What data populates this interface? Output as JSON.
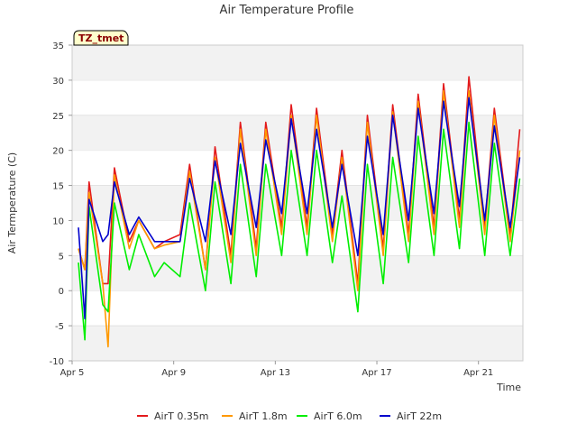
{
  "chart_data": {
    "type": "line",
    "title": "Air Temperature Profile",
    "xlabel": "Time",
    "ylabel": "Air Termperature (C)",
    "site_label": "TZ_tmet",
    "ylim": [
      -10,
      35
    ],
    "y_ticks": [
      -10,
      -5,
      0,
      5,
      10,
      15,
      20,
      25,
      30,
      35
    ],
    "xlim": [
      "2000-04-05",
      "2000-04-22 18:00"
    ],
    "x_ticks": [
      {
        "label": "Apr 5",
        "date": "2000-04-05"
      },
      {
        "label": "Apr 9",
        "date": "2000-04-09"
      },
      {
        "label": "Apr 13",
        "date": "2000-04-13"
      },
      {
        "label": "Apr 17",
        "date": "2000-04-17"
      },
      {
        "label": "Apr 21",
        "date": "2000-04-21"
      }
    ],
    "grid": "horizontal bands",
    "legend_position": "bottom",
    "series": [
      {
        "name": "AirT 0.35m",
        "color": "#e31a1c",
        "x": [
          "2000-04-05 06:00",
          "2000-04-05 12:00",
          "2000-04-05 16:00",
          "2000-04-06 05:00",
          "2000-04-06 10:00",
          "2000-04-06 16:00",
          "2000-04-07 06:00",
          "2000-04-07 15:00",
          "2000-04-08 06:00",
          "2000-04-08 15:00",
          "2000-04-09 06:00",
          "2000-04-09 15:00",
          "2000-04-10 06:00",
          "2000-04-10 15:00",
          "2000-04-11 06:00",
          "2000-04-11 15:00",
          "2000-04-12 06:00",
          "2000-04-12 15:00",
          "2000-04-13 06:00",
          "2000-04-13 15:00",
          "2000-04-14 06:00",
          "2000-04-14 15:00",
          "2000-04-15 06:00",
          "2000-04-15 15:00",
          "2000-04-16 06:00",
          "2000-04-16 15:00",
          "2000-04-17 06:00",
          "2000-04-17 15:00",
          "2000-04-18 06:00",
          "2000-04-18 15:00",
          "2000-04-19 06:00",
          "2000-04-19 15:00",
          "2000-04-20 06:00",
          "2000-04-20 15:00",
          "2000-04-21 06:00",
          "2000-04-21 15:00",
          "2000-04-22 06:00",
          "2000-04-22 15:00"
        ],
        "y": [
          6,
          3,
          15.5,
          1,
          1,
          17.5,
          7,
          10,
          6,
          7,
          8,
          18,
          3,
          20.5,
          5,
          24,
          6,
          24,
          9,
          26.5,
          9,
          26,
          8,
          20,
          1,
          25,
          6,
          26.5,
          8,
          28,
          9,
          29.5,
          10,
          30.5,
          9,
          26,
          8,
          23
        ]
      },
      {
        "name": "AirT 1.8m",
        "color": "#ff9900",
        "x": [
          "2000-04-05 06:00",
          "2000-04-05 12:00",
          "2000-04-05 16:00",
          "2000-04-06 05:00",
          "2000-04-06 10:00",
          "2000-04-06 16:00",
          "2000-04-07 06:00",
          "2000-04-07 15:00",
          "2000-04-08 06:00",
          "2000-04-08 15:00",
          "2000-04-09 06:00",
          "2000-04-09 15:00",
          "2000-04-10 06:00",
          "2000-04-10 15:00",
          "2000-04-11 06:00",
          "2000-04-11 15:00",
          "2000-04-12 06:00",
          "2000-04-12 15:00",
          "2000-04-13 06:00",
          "2000-04-13 15:00",
          "2000-04-14 06:00",
          "2000-04-14 15:00",
          "2000-04-15 06:00",
          "2000-04-15 15:00",
          "2000-04-16 06:00",
          "2000-04-16 15:00",
          "2000-04-17 06:00",
          "2000-04-17 15:00",
          "2000-04-18 06:00",
          "2000-04-18 15:00",
          "2000-04-19 06:00",
          "2000-04-19 15:00",
          "2000-04-20 06:00",
          "2000-04-20 15:00",
          "2000-04-21 06:00",
          "2000-04-21 15:00",
          "2000-04-22 06:00",
          "2000-04-22 15:00"
        ],
        "y": [
          6,
          3,
          14,
          1,
          -8,
          16.5,
          6,
          10,
          6,
          6.5,
          7,
          17,
          3,
          19,
          4,
          23,
          5,
          23,
          8,
          25,
          8,
          25,
          7,
          19,
          0,
          24,
          5,
          25.5,
          7,
          27,
          8,
          28.5,
          9,
          28.5,
          8,
          25,
          7,
          20
        ]
      },
      {
        "name": "AirT 6.0m",
        "color": "#00ee00",
        "x": [
          "2000-04-05 06:00",
          "2000-04-05 12:00",
          "2000-04-05 16:00",
          "2000-04-06 05:00",
          "2000-04-06 10:00",
          "2000-04-06 16:00",
          "2000-04-07 06:00",
          "2000-04-07 15:00",
          "2000-04-08 06:00",
          "2000-04-08 15:00",
          "2000-04-09 06:00",
          "2000-04-09 15:00",
          "2000-04-10 06:00",
          "2000-04-10 15:00",
          "2000-04-11 06:00",
          "2000-04-11 15:00",
          "2000-04-12 06:00",
          "2000-04-12 15:00",
          "2000-04-13 06:00",
          "2000-04-13 15:00",
          "2000-04-14 06:00",
          "2000-04-14 15:00",
          "2000-04-15 06:00",
          "2000-04-15 15:00",
          "2000-04-16 06:00",
          "2000-04-16 15:00",
          "2000-04-17 06:00",
          "2000-04-17 15:00",
          "2000-04-18 06:00",
          "2000-04-18 15:00",
          "2000-04-19 06:00",
          "2000-04-19 15:00",
          "2000-04-20 06:00",
          "2000-04-20 15:00",
          "2000-04-21 06:00",
          "2000-04-21 15:00",
          "2000-04-22 06:00",
          "2000-04-22 15:00"
        ],
        "y": [
          4,
          -7,
          12,
          -2,
          -3,
          12.5,
          3,
          8,
          2,
          4,
          2,
          12.5,
          0,
          15.5,
          1,
          18,
          2,
          18,
          5,
          20,
          5,
          20,
          4,
          13.5,
          -3,
          18,
          1,
          19,
          4,
          22,
          5,
          23,
          6,
          24,
          5,
          21,
          5,
          16
        ]
      },
      {
        "name": "AirT 22m",
        "color": "#0000cc",
        "x": [
          "2000-04-05 06:00",
          "2000-04-05 12:00",
          "2000-04-05 16:00",
          "2000-04-06 05:00",
          "2000-04-06 10:00",
          "2000-04-06 16:00",
          "2000-04-07 06:00",
          "2000-04-07 15:00",
          "2000-04-08 06:00",
          "2000-04-08 15:00",
          "2000-04-09 06:00",
          "2000-04-09 15:00",
          "2000-04-10 06:00",
          "2000-04-10 15:00",
          "2000-04-11 06:00",
          "2000-04-11 15:00",
          "2000-04-12 06:00",
          "2000-04-12 15:00",
          "2000-04-13 06:00",
          "2000-04-13 15:00",
          "2000-04-14 06:00",
          "2000-04-14 15:00",
          "2000-04-15 06:00",
          "2000-04-15 15:00",
          "2000-04-16 06:00",
          "2000-04-16 15:00",
          "2000-04-17 06:00",
          "2000-04-17 15:00",
          "2000-04-18 06:00",
          "2000-04-18 15:00",
          "2000-04-19 06:00",
          "2000-04-19 15:00",
          "2000-04-20 06:00",
          "2000-04-20 15:00",
          "2000-04-21 06:00",
          "2000-04-21 15:00",
          "2000-04-22 06:00",
          "2000-04-22 15:00"
        ],
        "y": [
          9,
          -4,
          13,
          7,
          8,
          15.5,
          8,
          10.5,
          7,
          7,
          7,
          16,
          7,
          18.5,
          8,
          21,
          9,
          21.5,
          11,
          24.5,
          11,
          23,
          9,
          18,
          5,
          22,
          8,
          25,
          10,
          26,
          11,
          27,
          12,
          27.5,
          10,
          23.5,
          9,
          19
        ]
      }
    ]
  }
}
